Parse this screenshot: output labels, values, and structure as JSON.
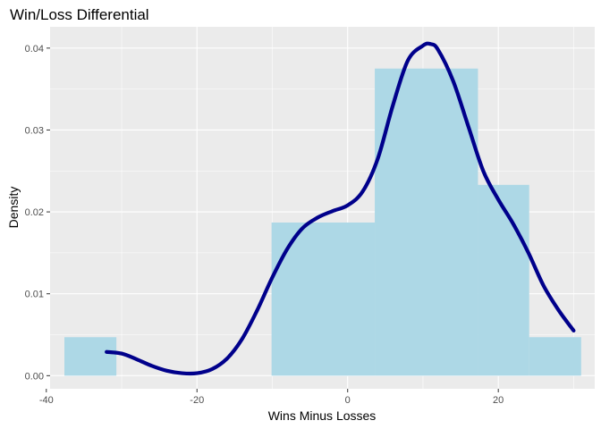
{
  "chart_data": {
    "type": "histogram",
    "title": "Win/Loss Differential",
    "xlabel": "Wins Minus Losses",
    "ylabel": "Density",
    "xlim": [
      -39.5,
      32.8
    ],
    "ylim": [
      -0.0016,
      0.0426
    ],
    "x_ticks": [
      -40,
      -20,
      0,
      20
    ],
    "x_tick_labels": [
      "-40",
      "-20",
      "0",
      "20"
    ],
    "y_ticks": [
      0.0,
      0.01,
      0.02,
      0.03,
      0.04
    ],
    "y_tick_labels": [
      "0.00",
      "0.01",
      "0.02",
      "0.03",
      "0.04"
    ],
    "grid": true,
    "colors": {
      "panel_background": "#ebebeb",
      "grid": "#ffffff",
      "bar_fill": "#add8e6",
      "density_line": "#00008b"
    },
    "bins": [
      {
        "x0": -37.6,
        "x1": -30.7,
        "density": 0.0047
      },
      {
        "x0": -30.7,
        "x1": -23.9,
        "density": 0.0
      },
      {
        "x0": -23.9,
        "x1": -17.0,
        "density": 0.0
      },
      {
        "x0": -17.0,
        "x1": -10.1,
        "density": 0.0
      },
      {
        "x0": -10.1,
        "x1": 3.6,
        "density": 0.0187
      },
      {
        "x0": 3.6,
        "x1": 17.3,
        "density": 0.0375
      },
      {
        "x0": 17.3,
        "x1": 24.1,
        "density": 0.0233
      },
      {
        "x0": 24.1,
        "x1": 31.0,
        "density": 0.0047
      }
    ],
    "density_curve": {
      "x": [
        -32,
        -30,
        -28,
        -26,
        -24,
        -22,
        -20,
        -18,
        -16,
        -14,
        -12,
        -10,
        -8,
        -6,
        -4,
        -2,
        0,
        2,
        4,
        6,
        8,
        10,
        11,
        12,
        14,
        16,
        18,
        20,
        22,
        24,
        26,
        28,
        30
      ],
      "y": [
        0.0029,
        0.0027,
        0.002,
        0.0012,
        0.0006,
        0.0003,
        0.0003,
        0.0008,
        0.0021,
        0.0045,
        0.008,
        0.012,
        0.0155,
        0.018,
        0.0193,
        0.0201,
        0.0208,
        0.0225,
        0.0265,
        0.033,
        0.0385,
        0.0403,
        0.0405,
        0.0398,
        0.036,
        0.0305,
        0.025,
        0.0215,
        0.0185,
        0.015,
        0.011,
        0.008,
        0.0055
      ]
    }
  }
}
